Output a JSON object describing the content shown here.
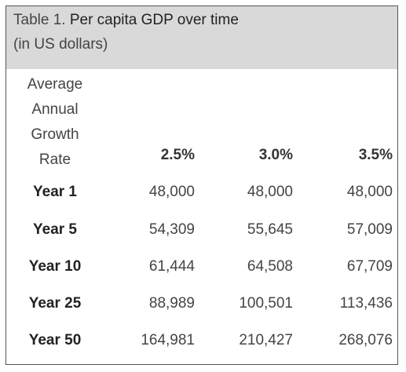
{
  "caption": {
    "label": "Table 1.",
    "title": " Per capita GDP over time",
    "subtitle": "(in US dollars)"
  },
  "header": {
    "row_label_lines": [
      "Average",
      "Annual",
      "Growth",
      "Rate"
    ],
    "columns": [
      "2.5%",
      "3.0%",
      "3.5%"
    ]
  },
  "rows": [
    {
      "label": "Year 1",
      "values": [
        "48,000",
        "48,000",
        "48,000"
      ]
    },
    {
      "label": "Year 5",
      "values": [
        "54,309",
        "55,645",
        "57,009"
      ]
    },
    {
      "label": "Year 10",
      "values": [
        "61,444",
        "64,508",
        "67,709"
      ]
    },
    {
      "label": "Year 25",
      "values": [
        "88,989",
        "100,501",
        "113,436"
      ]
    },
    {
      "label": "Year 50",
      "values": [
        "164,981",
        "210,427",
        "268,076"
      ]
    }
  ],
  "colors": {
    "caption_background": "#d9d9d9",
    "border": "#555555"
  }
}
